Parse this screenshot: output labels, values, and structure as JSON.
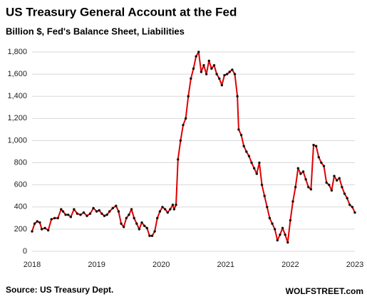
{
  "chart_data": {
    "type": "line",
    "title": "US Treasury General Account at the Fed",
    "subtitle": "Billion $, Fed's Balance Sheet, Liabilities",
    "source": "Source: US Treasury Dept.",
    "brand": "WOLFSTREET.com",
    "xlim": [
      2018,
      2023
    ],
    "xticks": [
      2018,
      2019,
      2020,
      2021,
      2022,
      2023
    ],
    "ylim": [
      0,
      1800
    ],
    "yticks": [
      0,
      200,
      400,
      600,
      800,
      {
        "value": 1000,
        "label": "1,000"
      },
      {
        "value": 1200,
        "label": "1,200"
      },
      {
        "value": 1400,
        "label": "1,400"
      },
      {
        "value": 1600,
        "label": "1,600"
      },
      {
        "value": 1800,
        "label": "1,800"
      }
    ],
    "grid": true,
    "x": [
      2018.0,
      2018.04,
      2018.08,
      2018.12,
      2018.15,
      2018.2,
      2018.25,
      2018.3,
      2018.35,
      2018.4,
      2018.45,
      2018.48,
      2018.52,
      2018.56,
      2018.6,
      2018.65,
      2018.7,
      2018.75,
      2018.8,
      2018.85,
      2018.9,
      2018.95,
      2019.0,
      2019.04,
      2019.08,
      2019.12,
      2019.16,
      2019.2,
      2019.25,
      2019.3,
      2019.34,
      2019.38,
      2019.42,
      2019.46,
      2019.5,
      2019.54,
      2019.58,
      2019.62,
      2019.66,
      2019.7,
      2019.74,
      2019.78,
      2019.82,
      2019.86,
      2019.9,
      2019.94,
      2019.98,
      2020.02,
      2020.06,
      2020.1,
      2020.14,
      2020.18,
      2020.2,
      2020.23,
      2020.26,
      2020.3,
      2020.34,
      2020.38,
      2020.42,
      2020.46,
      2020.5,
      2020.54,
      2020.58,
      2020.62,
      2020.66,
      2020.7,
      2020.74,
      2020.78,
      2020.82,
      2020.86,
      2020.9,
      2020.94,
      2020.98,
      2021.02,
      2021.06,
      2021.1,
      2021.14,
      2021.18,
      2021.2,
      2021.24,
      2021.28,
      2021.32,
      2021.36,
      2021.4,
      2021.44,
      2021.48,
      2021.52,
      2021.56,
      2021.6,
      2021.64,
      2021.68,
      2021.72,
      2021.76,
      2021.8,
      2021.84,
      2021.88,
      2021.92,
      2021.96,
      2022.0,
      2022.04,
      2022.08,
      2022.12,
      2022.16,
      2022.2,
      2022.24,
      2022.28,
      2022.32,
      2022.36,
      2022.4,
      2022.44,
      2022.48,
      2022.52,
      2022.56,
      2022.6,
      2022.64,
      2022.68,
      2022.72,
      2022.76,
      2022.8,
      2022.84,
      2022.88,
      2022.92,
      2022.96,
      2023.0
    ],
    "series": [
      {
        "color": "#e00000",
        "marker_color": "#111111",
        "values": [
          180,
          250,
          270,
          260,
          200,
          210,
          190,
          290,
          300,
          300,
          380,
          360,
          330,
          330,
          310,
          380,
          340,
          330,
          350,
          320,
          340,
          390,
          360,
          370,
          340,
          320,
          330,
          360,
          390,
          410,
          360,
          250,
          220,
          300,
          330,
          380,
          300,
          250,
          200,
          260,
          230,
          210,
          140,
          140,
          180,
          300,
          360,
          400,
          380,
          350,
          380,
          420,
          380,
          420,
          830,
          1000,
          1140,
          1200,
          1400,
          1560,
          1650,
          1760,
          1800,
          1620,
          1680,
          1600,
          1720,
          1650,
          1680,
          1600,
          1560,
          1500,
          1590,
          1600,
          1620,
          1640,
          1600,
          1400,
          1100,
          1050,
          950,
          900,
          860,
          800,
          750,
          700,
          800,
          600,
          500,
          400,
          300,
          250,
          200,
          100,
          150,
          210,
          150,
          80,
          280,
          450,
          580,
          750,
          700,
          720,
          650,
          580,
          560,
          960,
          950,
          850,
          800,
          770,
          620,
          600,
          550,
          680,
          640,
          660,
          580,
          520,
          480,
          420,
          400,
          350
        ]
      }
    ]
  }
}
